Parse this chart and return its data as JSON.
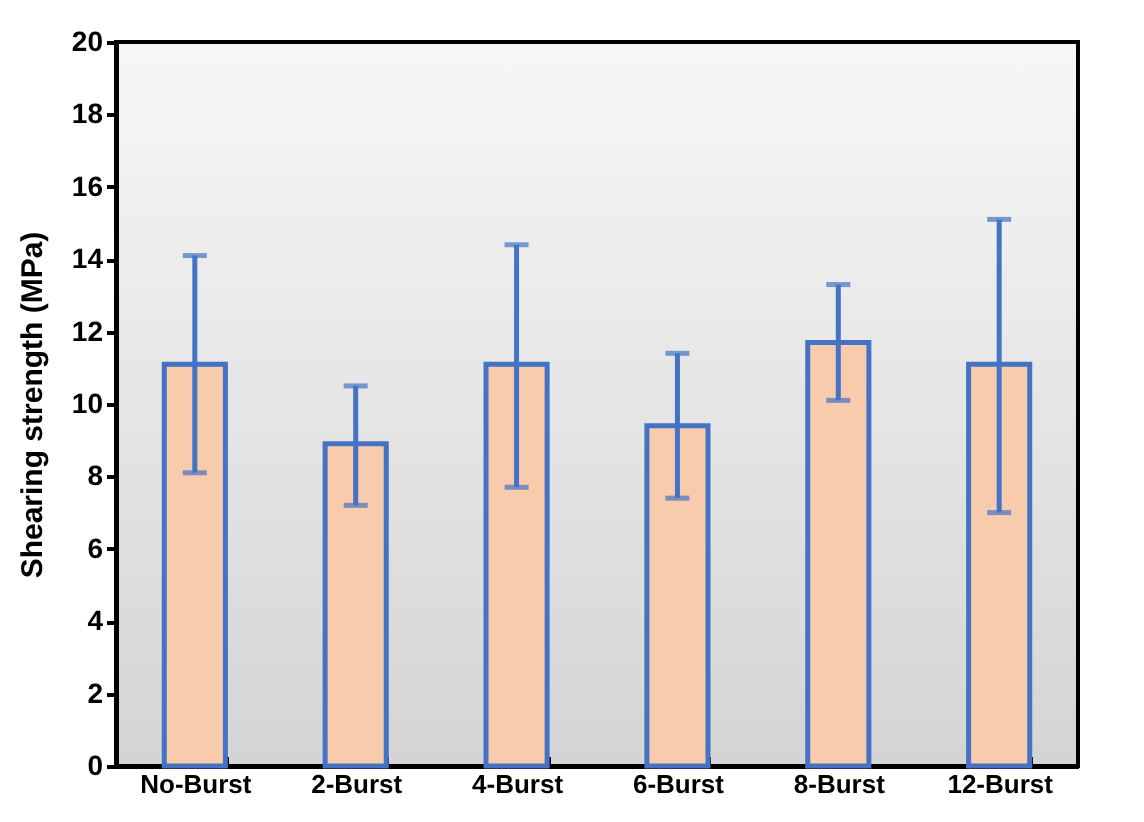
{
  "chart_data": {
    "type": "bar",
    "ylabel": "Shearing strength (MPa)",
    "categories": [
      "No-Burst",
      "2-Burst",
      "4-Burst",
      "6-Burst",
      "8-Burst",
      "12-Burst"
    ],
    "values": [
      11.1,
      8.9,
      11.1,
      9.4,
      11.7,
      11.1
    ],
    "errors": [
      [
        8.1,
        14.1
      ],
      [
        7.2,
        10.5
      ],
      [
        7.7,
        14.4
      ],
      [
        7.4,
        11.4
      ],
      [
        10.1,
        13.3
      ],
      [
        7.0,
        15.1
      ]
    ],
    "color": "#f8cbad",
    "ylim": [
      0,
      20
    ],
    "yticks": [
      0,
      2,
      4,
      6,
      8,
      10,
      12,
      14,
      16,
      18,
      20
    ],
    "grid": false
  }
}
